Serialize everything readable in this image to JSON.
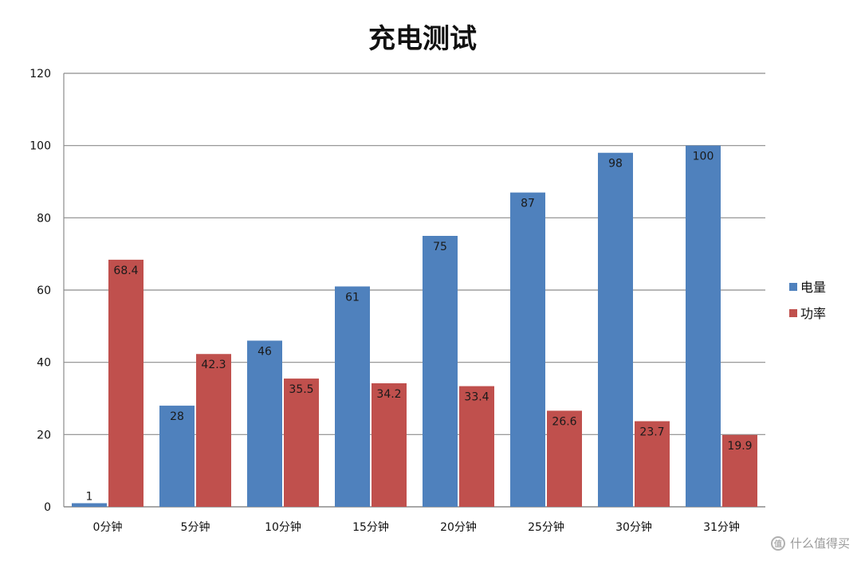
{
  "chart_data": {
    "type": "bar",
    "title": "充电测试",
    "categories": [
      "0分钟",
      "5分钟",
      "10分钟",
      "15分钟",
      "20分钟",
      "25分钟",
      "30分钟",
      "31分钟"
    ],
    "series": [
      {
        "name": "电量",
        "color": "#4f81bd",
        "values": [
          1,
          28,
          46,
          61,
          75,
          87,
          98,
          100
        ],
        "labels": [
          "1",
          "28",
          "46",
          "61",
          "75",
          "87",
          "98",
          "100"
        ]
      },
      {
        "name": "功率",
        "color": "#c0504d",
        "values": [
          68.4,
          42.3,
          35.5,
          34.2,
          33.4,
          26.6,
          23.7,
          19.9
        ],
        "labels": [
          "68.4",
          "42.3",
          "35.5",
          "34.2",
          "33.4",
          "26.6",
          "23.7",
          "19.9"
        ]
      }
    ],
    "ylim": [
      0,
      120
    ],
    "yticks": [
      "0",
      "20",
      "40",
      "60",
      "80",
      "100",
      "120"
    ],
    "grid": true,
    "legend_position": "right"
  },
  "watermark": {
    "text": "什么值得买",
    "icon": "值"
  }
}
